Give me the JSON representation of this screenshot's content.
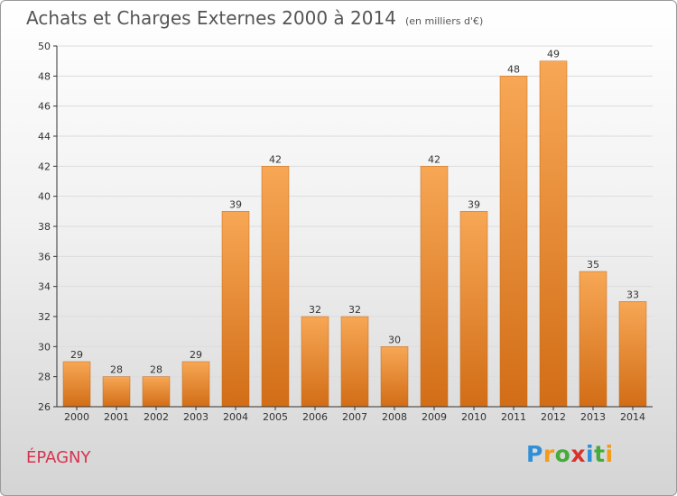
{
  "header": {
    "title": "Achats et Charges Externes 2000 à 2014",
    "unit": "(en milliers d'€)"
  },
  "footer": {
    "town": "ÉPAGNY",
    "logo_letters": [
      "P",
      "r",
      "o",
      "x",
      "i",
      "t",
      "i"
    ],
    "logo_colors": [
      "#2f8fd8",
      "#f39b1a",
      "#46ab3c",
      "#d9322b",
      "#2f8fd8",
      "#46ab3c",
      "#f39b1a"
    ]
  },
  "colors": {
    "bar_top": "#f7a755",
    "bar_bottom": "#d26d16",
    "grid": "#dcdcdc",
    "axis": "#333333"
  },
  "chart_data": {
    "type": "bar",
    "title": "Achats et Charges Externes 2000 à 2014",
    "subtitle": "(en milliers d'€)",
    "categories": [
      "2000",
      "2001",
      "2002",
      "2003",
      "2004",
      "2005",
      "2006",
      "2007",
      "2008",
      "2009",
      "2010",
      "2011",
      "2012",
      "2013",
      "2014"
    ],
    "values": [
      29,
      28,
      28,
      29,
      39,
      42,
      32,
      32,
      30,
      42,
      39,
      48,
      49,
      35,
      33
    ],
    "ylim": [
      26,
      50
    ],
    "yticks": [
      26,
      28,
      30,
      32,
      34,
      36,
      38,
      40,
      42,
      44,
      46,
      48,
      50
    ],
    "grid": true,
    "data_labels": true
  }
}
